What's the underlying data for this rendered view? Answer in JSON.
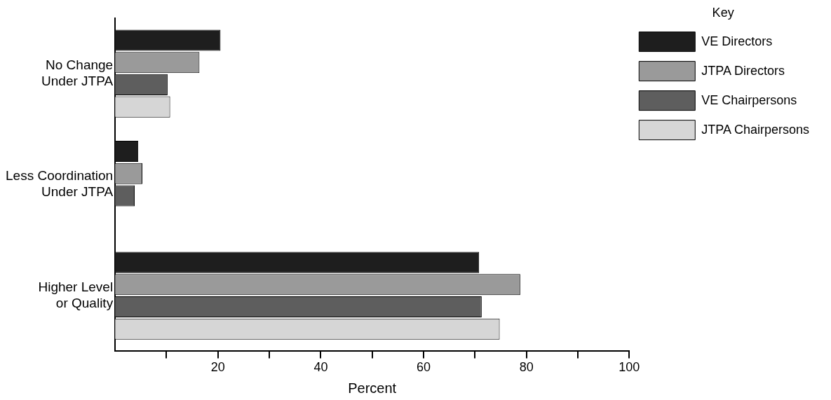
{
  "chart_data": {
    "type": "bar",
    "orientation": "horizontal",
    "categories": [
      "No Change Under JTPA",
      "Less Coordination Under JTPA",
      "Higher Level or Quality"
    ],
    "series": [
      {
        "name": "VE Directors",
        "color": "#1e1e1e",
        "values": [
          20.5,
          4.5,
          70.8
        ]
      },
      {
        "name": "JTPA Directors",
        "color": "#9a9a9a",
        "values": [
          16.4,
          5.3,
          78.8
        ]
      },
      {
        "name": "VE Chairpersons",
        "color": "#5e5e5e",
        "values": [
          10.2,
          3.8,
          71.3
        ]
      },
      {
        "name": "JTPA Chairpersons",
        "color": "#d6d6d6",
        "values": [
          10.7,
          null,
          74.8
        ]
      }
    ],
    "xlabel": "Percent",
    "legend_title": "Key",
    "legend": "top right",
    "grid": false,
    "xlim": [
      0,
      100
    ],
    "xticks": [
      {
        "value": 10,
        "label": null
      },
      20,
      {
        "value": 30,
        "label": null
      },
      40,
      {
        "value": 50,
        "label": null
      },
      60,
      {
        "value": 70,
        "label": null
      },
      80,
      {
        "value": 90,
        "label": null
      },
      100
    ]
  }
}
